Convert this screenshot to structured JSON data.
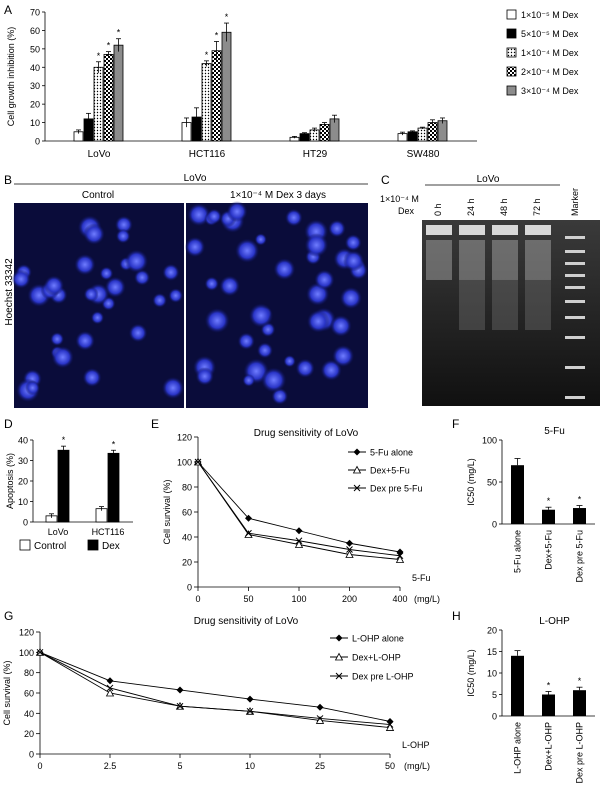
{
  "panels": {
    "A": "A",
    "B": "B",
    "C": "C",
    "D": "D",
    "E": "E",
    "F": "F",
    "G": "G",
    "H": "H"
  },
  "chart_data": [
    {
      "id": "A",
      "type": "bar",
      "ylabel": "Cell growth inhibition (%)",
      "ylim": [
        0,
        70
      ],
      "yticks": [
        "0",
        "10",
        "20",
        "30",
        "40",
        "50",
        "60",
        "70"
      ],
      "categories": [
        "LoVo",
        "HCT116",
        "HT29",
        "SW480"
      ],
      "series": [
        {
          "name": "1×10⁻⁵ M Dex",
          "color": "#ffffff",
          "pattern": "none",
          "values": [
            5,
            10,
            2,
            4
          ],
          "errors": [
            1,
            2.5,
            0.5,
            0.8
          ],
          "sig": [
            "",
            "",
            "",
            ""
          ]
        },
        {
          "name": "5×10⁻⁵ M Dex",
          "color": "#000000",
          "pattern": "none",
          "values": [
            12,
            13,
            4,
            5
          ],
          "errors": [
            3,
            5,
            0.5,
            0.5
          ],
          "sig": [
            "",
            "",
            "",
            ""
          ]
        },
        {
          "name": "1×10⁻⁴ M Dex",
          "color": "#ffffff",
          "pattern": "dots",
          "values": [
            40,
            42,
            6,
            7
          ],
          "errors": [
            3,
            1.5,
            1,
            0.5
          ],
          "sig": [
            "*",
            "*",
            "",
            ""
          ]
        },
        {
          "name": "2×10⁻⁴ M Dex",
          "color": "#222222",
          "pattern": "checker",
          "values": [
            47,
            49,
            9,
            10
          ],
          "errors": [
            1.5,
            5,
            1,
            1.5
          ],
          "sig": [
            "*",
            "*",
            "",
            ""
          ]
        },
        {
          "name": "3×10⁻⁴ M Dex",
          "color": "#8c8c8c",
          "pattern": "none",
          "values": [
            52,
            59,
            12,
            11
          ],
          "errors": [
            3.5,
            5,
            2,
            1.5
          ],
          "sig": [
            "*",
            "*",
            "",
            ""
          ]
        }
      ]
    },
    {
      "id": "D",
      "type": "bar",
      "ylabel": "Apoptosis (%)",
      "ylim": [
        0,
        40
      ],
      "yticks": [
        "0",
        "10",
        "20",
        "30",
        "40"
      ],
      "categories": [
        "LoVo",
        "HCT116"
      ],
      "series": [
        {
          "name": "Control",
          "color": "#ffffff",
          "values": [
            3,
            6.5
          ],
          "errors": [
            1,
            1
          ],
          "sig": [
            "",
            ""
          ]
        },
        {
          "name": "Dex",
          "color": "#000000",
          "values": [
            35,
            33.5
          ],
          "errors": [
            2,
            1.5
          ],
          "sig": [
            "*",
            "*"
          ]
        }
      ]
    },
    {
      "id": "E",
      "type": "line",
      "title": "Drug sensitivity of LoVo",
      "ylabel": "Cell survival (%)",
      "xlabel_line1": "5-Fu",
      "xlabel_line2": "(mg/L)",
      "ylim": [
        0,
        120
      ],
      "yticks": [
        "0",
        "20",
        "40",
        "60",
        "80",
        "100",
        "120"
      ],
      "x": [
        "0",
        "50",
        "100",
        "200",
        "400"
      ],
      "series": [
        {
          "name": "5-Fu alone",
          "marker": "diamond",
          "values": [
            100,
            55,
            45,
            35,
            28
          ]
        },
        {
          "name": "Dex+5-Fu",
          "marker": "triangle",
          "values": [
            100,
            42,
            34,
            26,
            22
          ]
        },
        {
          "name": "Dex pre 5-Fu",
          "marker": "x",
          "values": [
            100,
            43,
            37,
            30,
            25
          ]
        }
      ]
    },
    {
      "id": "F",
      "type": "bar",
      "title": "5-Fu",
      "ylabel": "IC50 (mg/L)",
      "ylim": [
        0,
        100
      ],
      "yticks": [
        "0",
        "50",
        "100"
      ],
      "categories": [
        "5-Fu alone",
        "Dex+5-Fu",
        "Dex pre 5-Fu"
      ],
      "values": [
        70,
        17,
        19
      ],
      "errors": [
        8,
        3,
        3
      ],
      "sig": [
        "",
        "*",
        "*"
      ]
    },
    {
      "id": "G",
      "type": "line",
      "title": "Drug sensitivity of LoVo",
      "ylabel": "Cell survival (%)",
      "xlabel_line1": "L-OHP",
      "xlabel_line2": "(mg/L)",
      "ylim": [
        0,
        120
      ],
      "yticks": [
        "0",
        "20",
        "40",
        "60",
        "80",
        "100",
        "120"
      ],
      "x": [
        "0",
        "2.5",
        "5",
        "10",
        "25",
        "50"
      ],
      "series": [
        {
          "name": "L-OHP alone",
          "marker": "diamond",
          "values": [
            100,
            72,
            63,
            54,
            46,
            32
          ]
        },
        {
          "name": "Dex+L-OHP",
          "marker": "triangle",
          "values": [
            100,
            60,
            47,
            42,
            33,
            26
          ]
        },
        {
          "name": "Dex pre L-OHP",
          "marker": "x",
          "values": [
            100,
            65,
            47,
            42,
            35,
            29
          ]
        }
      ]
    },
    {
      "id": "H",
      "type": "bar",
      "title": "L-OHP",
      "ylabel": "IC50 (mg/L)",
      "ylim": [
        0,
        20
      ],
      "yticks": [
        "0",
        "5",
        "10",
        "15",
        "20"
      ],
      "categories": [
        "L-OHP alone",
        "Dex+L-OHP",
        "Dex pre L-OHP"
      ],
      "values": [
        14,
        5,
        6
      ],
      "errors": [
        1.2,
        0.7,
        0.7
      ],
      "sig": [
        "",
        "*",
        "*"
      ]
    }
  ],
  "panel_b": {
    "title": "LoVo",
    "left_label": "Control",
    "right_label": "1×10⁻⁴ M Dex 3 days",
    "ylabel": "Hoechst 33342"
  },
  "panel_c": {
    "title": "LoVo",
    "row_label1": "1×10⁻⁴ M",
    "row_label2": "Dex",
    "lanes": [
      "0 h",
      "24 h",
      "48 h",
      "72 h",
      "Marker"
    ]
  }
}
